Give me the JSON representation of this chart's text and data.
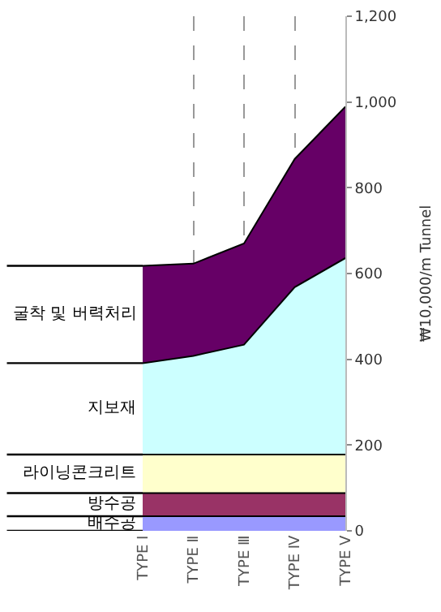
{
  "chart_data": {
    "type": "area",
    "stacked": true,
    "ylabel": "₩10,000/m Tunnel",
    "categories": [
      "TYPE Ⅰ",
      "TYPE Ⅱ",
      "TYPE Ⅲ",
      "TYPE Ⅳ",
      "TYPE Ⅴ"
    ],
    "series": [
      {
        "name": "배수공",
        "color": "#9999ff",
        "values": [
          34,
          34,
          34,
          34,
          34
        ]
      },
      {
        "name": "방수공",
        "color": "#993366",
        "values": [
          54,
          54,
          54,
          54,
          54
        ]
      },
      {
        "name": "라이닝콘크리트",
        "color": "#ffffcc",
        "values": [
          90,
          90,
          90,
          90,
          90
        ]
      },
      {
        "name": "지보재",
        "color": "#ccffff",
        "values": [
          213,
          230,
          256,
          390,
          458
        ]
      },
      {
        "name": "굴착 및 버력처리",
        "color": "#660066",
        "values": [
          227,
          215,
          236,
          299,
          353
        ]
      }
    ],
    "ylim": [
      0,
      1200
    ],
    "yticks": [
      {
        "value": 0,
        "label": "0"
      },
      {
        "value": 200,
        "label": "200"
      },
      {
        "value": 400,
        "label": "400"
      },
      {
        "value": 600,
        "label": "600"
      },
      {
        "value": 800,
        "label": "800"
      },
      {
        "value": 1000,
        "label": "1,000"
      },
      {
        "value": 1200,
        "label": "1,200"
      }
    ],
    "grid": "x",
    "legend": false
  }
}
